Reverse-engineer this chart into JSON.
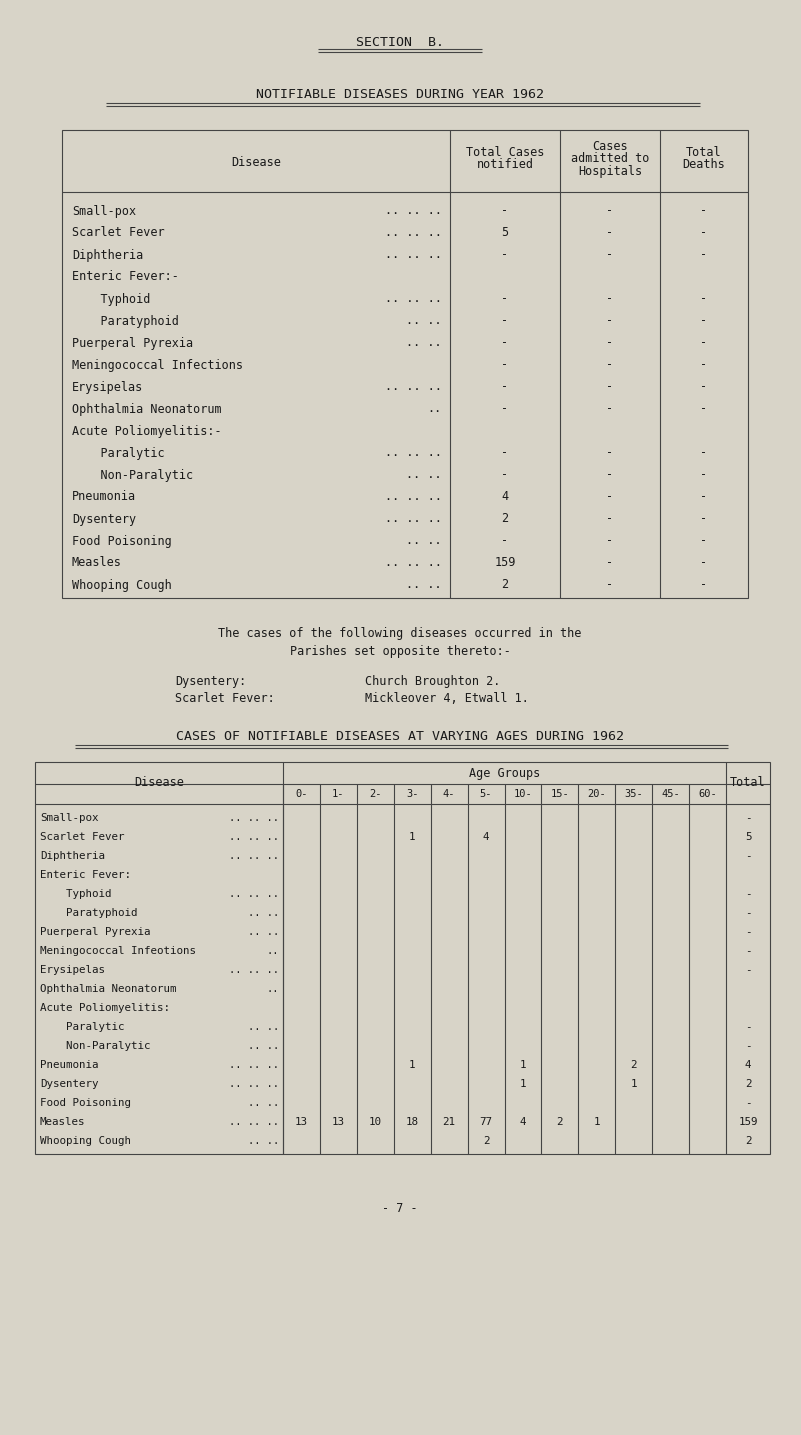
{
  "bg_color": "#d8d4c8",
  "text_color": "#1a1a1a",
  "section_title": "SECTION  B.",
  "main_title": "NOTIFIABLE DISEASES DURING YEAR 1962",
  "table2_title": "CASES OF NOTIFIABLE DISEASES AT VARYING AGES DURING 1962",
  "note_line1": "The cases of the following diseases occurred in the",
  "note_line2": "Parishes set opposite thereto:-",
  "note_dysentery": "Dysentery:",
  "note_dysentery_val": "Church Broughton 2.",
  "note_scarlet": "Scarlet Fever:",
  "note_scarlet_val": "Mickleover 4, Etwall 1.",
  "table1_rows": [
    [
      "Small-pox",
      ".. .. ..",
      "-",
      "-",
      "-"
    ],
    [
      "Scarlet Fever",
      ".. .. ..",
      "5",
      "-",
      "-"
    ],
    [
      "Diphtheria",
      ".. .. ..",
      "-",
      "-",
      "-"
    ],
    [
      "Enteric Fever:-",
      "",
      "",
      "",
      ""
    ],
    [
      "    Typhoid",
      ".. .. ..",
      "-",
      "-",
      "-"
    ],
    [
      "    Paratyphoid",
      ".. ..",
      "-",
      "-",
      "-"
    ],
    [
      "Puerperal Pyrexia",
      ".. ..",
      "-",
      "-",
      "-"
    ],
    [
      "Meningococcal Infections",
      "",
      "-",
      "-",
      "-"
    ],
    [
      "Erysipelas",
      ".. .. ..",
      "-",
      "-",
      "-"
    ],
    [
      "Ophthalmia Neonatorum",
      "..",
      "-",
      "-",
      "-"
    ],
    [
      "Acute Poliomyelitis:-",
      "",
      "",
      "",
      ""
    ],
    [
      "    Paralytic",
      ".. .. ..",
      "-",
      "-",
      "-"
    ],
    [
      "    Non-Paralytic",
      ".. ..",
      "-",
      "-",
      "-"
    ],
    [
      "Pneumonia",
      ".. .. ..",
      "4",
      "-",
      "-"
    ],
    [
      "Dysentery",
      ".. .. ..",
      "2",
      "-",
      "-"
    ],
    [
      "Food Poisoning",
      ".. ..",
      "-",
      "-",
      "-"
    ],
    [
      "Measles",
      ".. .. ..",
      "159",
      "-",
      "-"
    ],
    [
      "Whooping Cough",
      ".. ..",
      "2",
      "-",
      "-"
    ]
  ],
  "table2_rows": [
    [
      "Small-pox",
      ".. .. ..",
      "",
      "",
      "",
      "",
      "",
      "",
      "",
      "",
      "",
      "",
      "",
      "",
      "-"
    ],
    [
      "Scarlet Fever",
      ".. .. ..",
      "",
      "",
      "",
      "1",
      "",
      "4",
      "",
      "",
      "",
      "",
      "",
      "",
      "5"
    ],
    [
      "Diphtheria",
      ".. .. ..",
      "",
      "",
      "",
      "",
      "",
      "",
      "",
      "",
      "",
      "",
      "",
      "",
      "-"
    ],
    [
      "Enteric Fever:",
      "",
      "",
      "",
      "",
      "",
      "",
      "",
      "",
      "",
      "",
      "",
      "",
      "",
      ""
    ],
    [
      "    Typhoid",
      ".. .. ..",
      "",
      "",
      "",
      "",
      "",
      "",
      "",
      "",
      "",
      "",
      "",
      "",
      "-"
    ],
    [
      "    Paratyphoid",
      ".. ..",
      "",
      "",
      "",
      "",
      "",
      "",
      "",
      "",
      "",
      "",
      "",
      "",
      "-"
    ],
    [
      "Puerperal Pyrexia",
      ".. ..",
      "",
      "",
      "",
      "",
      "",
      "",
      "",
      "",
      "",
      "",
      "",
      "",
      "-"
    ],
    [
      "Meningococcal Infeotions",
      "..",
      "",
      "",
      "",
      "",
      "",
      "",
      "",
      "",
      "",
      "",
      "",
      "",
      "-"
    ],
    [
      "Erysipelas",
      ".. .. ..",
      "",
      "",
      "",
      "",
      "",
      "",
      "",
      "",
      "",
      "",
      "",
      "",
      "-"
    ],
    [
      "Ophthalmia Neonatorum",
      "..",
      "",
      "",
      "",
      "",
      "",
      "",
      "",
      "",
      "",
      "",
      "",
      "",
      ""
    ],
    [
      "Acute Poliomyelitis:",
      "",
      "",
      "",
      "",
      "",
      "",
      "",
      "",
      "",
      "",
      "",
      "",
      "",
      ""
    ],
    [
      "    Paralytic",
      ".. ..",
      "",
      "",
      "",
      "",
      "",
      "",
      "",
      "",
      "",
      "",
      "",
      "",
      "-"
    ],
    [
      "    Non-Paralytic",
      ".. ..",
      "",
      "",
      "",
      "",
      "",
      "",
      "",
      "",
      "",
      "",
      "",
      "",
      "-"
    ],
    [
      "Pneumonia",
      ".. .. ..",
      "",
      "",
      "",
      "1",
      "",
      "",
      "1",
      "",
      "",
      "2",
      "",
      "",
      "4"
    ],
    [
      "Dysentery",
      ".. .. ..",
      "",
      "",
      "",
      "",
      "",
      "",
      "1",
      "",
      "",
      "1",
      "",
      "",
      "2"
    ],
    [
      "Food Poisoning",
      ".. ..",
      "",
      "",
      "",
      "",
      "",
      "",
      "",
      "",
      "",
      "",
      "",
      "",
      "-"
    ],
    [
      "Measles",
      ".. .. ..",
      "13",
      "13",
      "10",
      "18",
      "21",
      "77",
      "4",
      "2",
      "1",
      "",
      "",
      "",
      "159"
    ],
    [
      "Whooping Cough",
      ".. ..",
      "",
      "",
      "",
      "",
      "",
      "2",
      "",
      "",
      "",
      "",
      "",
      "",
      "2"
    ]
  ],
  "age_groups": [
    "0-",
    "1-",
    "2-",
    "3-",
    "4-",
    "5-",
    "10-",
    "15-",
    "20-",
    "35-",
    "45-",
    "60-"
  ],
  "page_number": "- 7 -",
  "font_size": 8.5
}
